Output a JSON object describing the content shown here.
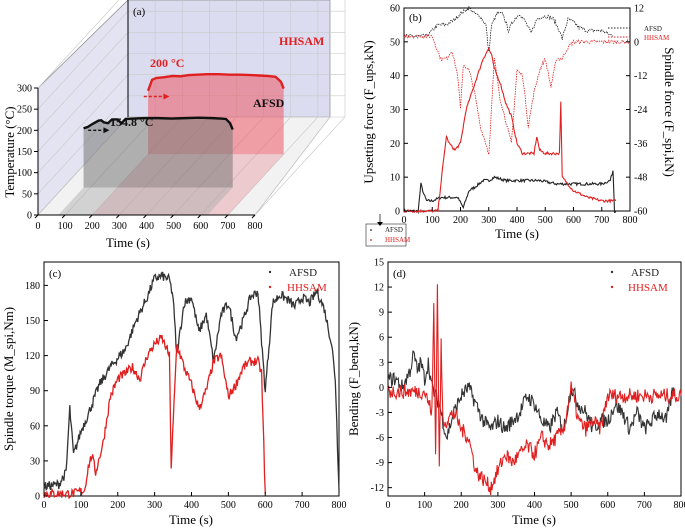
{
  "chart_data": [
    {
      "panel": "(a)",
      "type": "area",
      "xlabel": "Time (s)",
      "ylabel": "Temperature (°C)",
      "xlim": [
        0,
        800
      ],
      "ylim": [
        0,
        300
      ],
      "x_ticks": [
        0,
        100,
        200,
        300,
        400,
        500,
        600,
        700,
        800
      ],
      "y_ticks": [
        0,
        50,
        100,
        150,
        200,
        250,
        300
      ],
      "series": [
        {
          "name": "HHSAM",
          "color": "#e02020",
          "x": [
            200,
            215,
            230,
            260,
            290,
            320,
            350,
            380,
            420,
            460,
            500,
            540,
            580,
            610,
            640,
            670,
            690,
            700
          ],
          "y": [
            150,
            176,
            180,
            182,
            185,
            184,
            187,
            188,
            189,
            189,
            188,
            188,
            187,
            186,
            185,
            183,
            171,
            155
          ]
        },
        {
          "name": "AFSD",
          "color": "#111111",
          "x": [
            75,
            90,
            110,
            130,
            140,
            150,
            165,
            180,
            200,
            215,
            230,
            260,
            300,
            350,
            400,
            450,
            500,
            550,
            580,
            600,
            615,
            625
          ],
          "y": [
            140,
            143,
            151,
            158,
            159,
            154,
            152,
            161,
            161,
            152,
            162,
            163,
            164,
            164,
            163,
            164,
            165,
            164,
            163,
            162,
            152,
            137
          ]
        }
      ],
      "annotations": [
        {
          "text": "HHSAM",
          "color": "#e02020"
        },
        {
          "text": "200 °C",
          "color": "#e02020"
        },
        {
          "text": "AFSD",
          "color": "#111111"
        },
        {
          "text": "154.8 °C",
          "color": "#111111"
        }
      ]
    },
    {
      "panel": "(b)",
      "type": "line",
      "xlabel": "Time (s)",
      "ylabel_left": "Upsetting force (F_ups,kN)",
      "ylabel_right": "Spindle force (F_spi,kN)",
      "xlim": [
        0,
        800
      ],
      "ylim_left": [
        0,
        60
      ],
      "ylim_right": [
        -60,
        12
      ],
      "x_ticks": [
        0,
        100,
        200,
        300,
        400,
        500,
        600,
        700,
        800
      ],
      "y_ticks_left": [
        0,
        10,
        20,
        30,
        40,
        50,
        60
      ],
      "y_ticks_right": [
        12,
        0,
        -12,
        -24,
        -36,
        -48,
        -60
      ],
      "legend_top_right": [
        "AFSD",
        "HHSAM"
      ],
      "legend_bottom_left": [
        "AFSD",
        "HHSAM"
      ],
      "series": [
        {
          "name": "AFSD",
          "axis": "left",
          "color": "#222222",
          "x": [
            0,
            50,
            60,
            70,
            80,
            100,
            130,
            160,
            190,
            210,
            230,
            250,
            280,
            300,
            320,
            360,
            420,
            480,
            540,
            600,
            650,
            700,
            730,
            740,
            745,
            750
          ],
          "y": [
            0,
            0,
            8,
            5,
            3,
            3,
            4,
            4,
            4,
            1,
            6,
            7,
            9,
            9,
            10,
            9,
            9,
            9,
            8,
            8,
            8,
            8,
            9,
            12,
            0,
            0
          ]
        },
        {
          "name": "AFSD",
          "axis": "right",
          "color": "#222222",
          "x": [
            0,
            50,
            60,
            80,
            100,
            120,
            150,
            180,
            200,
            230,
            250,
            270,
            290,
            300,
            310,
            330,
            350,
            370,
            390,
            410,
            430,
            450,
            470,
            490,
            510,
            530,
            550,
            560,
            580,
            600,
            620,
            650,
            700,
            740
          ],
          "y": [
            2,
            2,
            2,
            2,
            4,
            6,
            6,
            8,
            10,
            12,
            10,
            9,
            6,
            -4,
            6,
            10,
            10,
            4,
            8,
            10,
            7,
            3,
            8,
            9,
            9,
            8,
            4,
            1,
            8,
            7,
            5,
            4,
            4,
            2
          ]
        },
        {
          "name": "HHSAM",
          "axis": "left",
          "color": "#e02020",
          "x": [
            0,
            120,
            140,
            150,
            160,
            180,
            200,
            220,
            240,
            260,
            280,
            300,
            310,
            320,
            340,
            360,
            380,
            400,
            420,
            440,
            460,
            470,
            480,
            500,
            520,
            540,
            550,
            555,
            560,
            600,
            650,
            700,
            750
          ],
          "y": [
            0,
            0,
            15,
            22,
            20,
            18,
            20,
            30,
            35,
            40,
            45,
            48,
            46,
            42,
            38,
            32,
            28,
            20,
            17,
            17,
            17,
            22,
            18,
            17,
            17,
            17,
            17,
            32,
            10,
            6,
            4,
            3,
            3
          ]
        },
        {
          "name": "HHSAM",
          "axis": "right",
          "color": "#e02020",
          "x": [
            0,
            100,
            130,
            150,
            170,
            190,
            200,
            210,
            230,
            250,
            270,
            290,
            300,
            320,
            340,
            360,
            380,
            400,
            420,
            440,
            460,
            480,
            500,
            520,
            540,
            560,
            580,
            600,
            700,
            800
          ],
          "y": [
            2,
            2,
            -6,
            -6,
            -3,
            -12,
            -24,
            -8,
            -10,
            -18,
            -30,
            -36,
            -40,
            -6,
            -20,
            -28,
            -36,
            -10,
            -12,
            -30,
            -18,
            -10,
            -6,
            -16,
            -6,
            -6,
            -2,
            0,
            0,
            0
          ]
        }
      ]
    },
    {
      "panel": "(c)",
      "type": "line",
      "xlabel": "Time (s)",
      "ylabel": "Spindle torque (M_spi,Nm)",
      "xlim": [
        0,
        800
      ],
      "ylim": [
        0,
        200
      ],
      "x_ticks": [
        0,
        100,
        200,
        300,
        400,
        500,
        600,
        700,
        800
      ],
      "y_ticks": [
        0,
        30,
        60,
        90,
        120,
        150,
        180
      ],
      "legend": [
        "AFSD",
        "HHSAM"
      ],
      "series": [
        {
          "name": "AFSD",
          "color": "#333333",
          "x": [
            0,
            40,
            60,
            70,
            80,
            100,
            120,
            150,
            180,
            200,
            220,
            250,
            280,
            300,
            320,
            340,
            350,
            360,
            380,
            400,
            420,
            440,
            460,
            480,
            500,
            520,
            540,
            560,
            580,
            600,
            620,
            640,
            660,
            680,
            700,
            720,
            740,
            760,
            780,
            790,
            800
          ],
          "y": [
            8,
            10,
            20,
            75,
            35,
            55,
            70,
            95,
            110,
            118,
            125,
            150,
            170,
            186,
            188,
            185,
            170,
            120,
            165,
            170,
            140,
            155,
            115,
            155,
            165,
            135,
            150,
            170,
            175,
            90,
            165,
            172,
            168,
            162,
            170,
            165,
            175,
            160,
            130,
            100,
            5
          ]
        },
        {
          "name": "HHSAM",
          "color": "#e02020",
          "x": [
            0,
            80,
            110,
            120,
            130,
            140,
            160,
            180,
            200,
            220,
            240,
            260,
            280,
            300,
            320,
            340,
            345,
            360,
            380,
            400,
            420,
            440,
            460,
            480,
            500,
            520,
            540,
            560,
            580,
            590,
            600
          ],
          "y": [
            2,
            2,
            5,
            25,
            35,
            20,
            45,
            85,
            100,
            105,
            110,
            100,
            120,
            130,
            135,
            120,
            25,
            130,
            110,
            95,
            75,
            90,
            115,
            120,
            85,
            95,
            110,
            115,
            115,
            105,
            2
          ]
        }
      ]
    },
    {
      "panel": "(d)",
      "type": "line",
      "xlabel": "Time (s)",
      "ylabel": "Bending (F_bend,kN)",
      "xlim": [
        0,
        800
      ],
      "ylim": [
        -13,
        15
      ],
      "x_ticks": [
        0,
        100,
        200,
        300,
        400,
        500,
        600,
        700,
        800
      ],
      "y_ticks": [
        15,
        12,
        9,
        6,
        3,
        0,
        -3,
        -6,
        -9,
        -12
      ],
      "legend": [
        "AFSD",
        "HHSAM"
      ],
      "series": [
        {
          "name": "AFSD",
          "color": "#333333",
          "x": [
            0,
            20,
            40,
            60,
            70,
            80,
            90,
            100,
            110,
            120,
            140,
            160,
            180,
            200,
            220,
            240,
            260,
            280,
            300,
            320,
            340,
            360,
            380,
            400,
            420,
            440,
            460,
            480,
            500,
            520,
            540,
            560,
            580,
            600,
            620,
            640,
            660,
            680,
            700,
            720,
            740,
            760,
            780
          ],
          "y": [
            1,
            1,
            0,
            2,
            4,
            2,
            3,
            1,
            3,
            0,
            -2,
            -6,
            -3,
            -1,
            0,
            -2,
            -4,
            -5,
            -4,
            -5,
            -4,
            -3,
            -1,
            -2,
            -4,
            -5,
            -3,
            -5,
            0,
            -2,
            -3,
            -5,
            -4,
            -4,
            -2,
            -3,
            -5,
            -3,
            -5,
            -4,
            -3,
            -4,
            0
          ]
        },
        {
          "name": "HHSAM",
          "color": "#e02020",
          "x": [
            0,
            60,
            100,
            120,
            125,
            130,
            135,
            140,
            145,
            150,
            160,
            180,
            200,
            220,
            240,
            260,
            280,
            300,
            320,
            340,
            360,
            380,
            400,
            420,
            440,
            460,
            480,
            500,
            520,
            540,
            560,
            580,
            600,
            650,
            700,
            750,
            780,
            800
          ],
          "y": [
            -0.5,
            -0.5,
            -0.5,
            -3,
            10,
            -8,
            12,
            -10,
            5,
            -4,
            -4,
            -3,
            -5,
            -6,
            -10,
            -11,
            -12,
            -10,
            -8,
            -9,
            -8,
            -7,
            -8,
            -6,
            -7,
            -6,
            -5,
            0,
            -4,
            -5,
            -4,
            -5,
            -1,
            -1,
            -1,
            -1,
            -1,
            -1
          ]
        }
      ]
    }
  ]
}
